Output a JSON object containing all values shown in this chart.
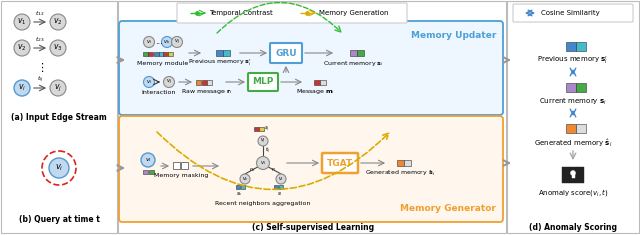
{
  "fig_width": 6.4,
  "fig_height": 2.35,
  "dpi": 100,
  "bg_color": "#ffffff",
  "panel_a_title": "(a) Input Edge Stream",
  "panel_b_title": "(b) Query at time t",
  "panel_c_title": "(c) Self-supervised Learning",
  "panel_d_title": "(d) Anomaly Scoring",
  "legend_temporal": "Temporal Contrast",
  "legend_memory": "Memory Generation",
  "legend_cosine": "Cosine Similarity",
  "memory_updater_label": "Memory Updater",
  "memory_generator_label": "Memory Generator",
  "color_blue_box": "#4d9fd6",
  "color_orange_box": "#f0a030",
  "color_green_arc": "#33bb33",
  "color_yellow_arc": "#ddaa00",
  "color_arrow": "#888888",
  "color_arrow_blue": "#4488cc",
  "c_teal": "#44bbcc",
  "c_blue": "#4488cc",
  "c_green": "#44aa44",
  "c_red": "#cc3333",
  "c_orange": "#ee8833",
  "c_purple": "#aa88cc",
  "c_yellow": "#ddcc44",
  "c_gray": "#aaaaaa",
  "c_lgray": "#dddddd",
  "c_node_gray": "#d8d8d8",
  "c_node_blue": "#c0d8f0",
  "c_node_blue_ec": "#5599cc"
}
